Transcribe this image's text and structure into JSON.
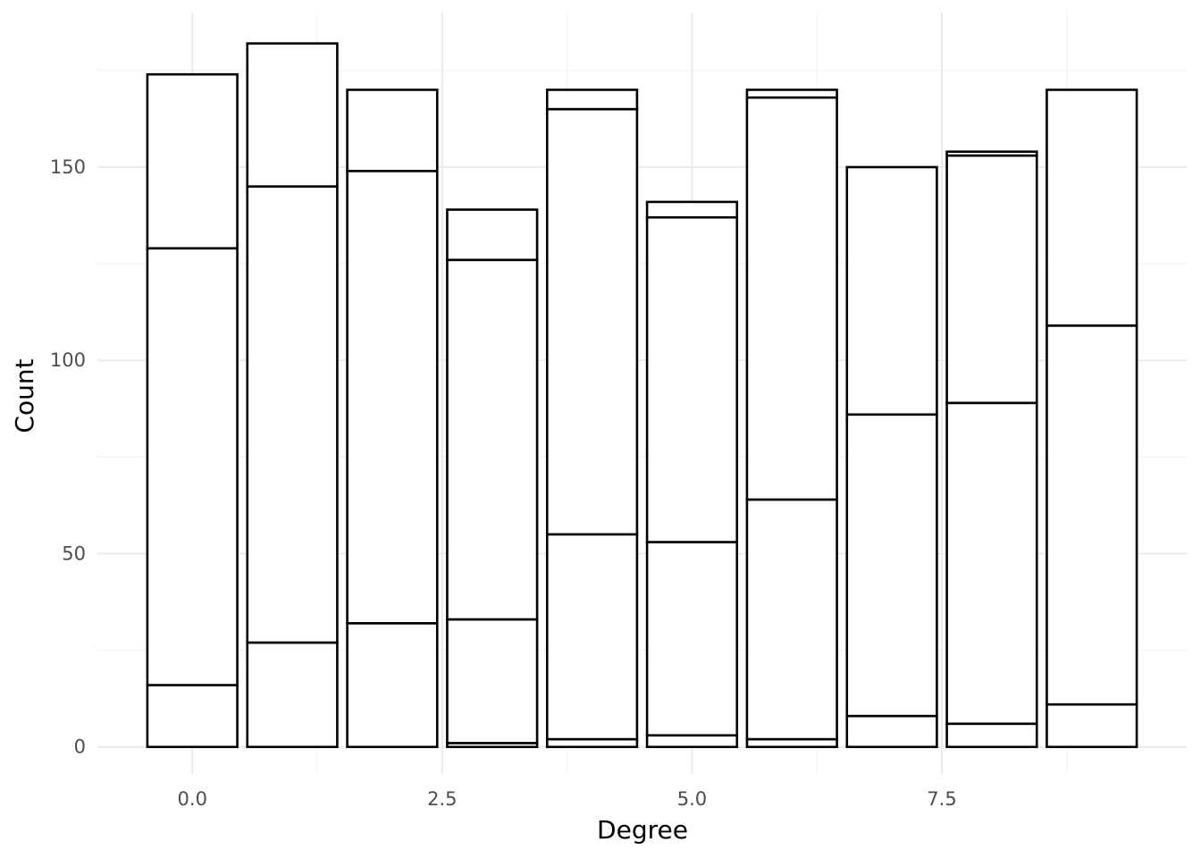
{
  "chart_data": {
    "type": "bar",
    "stacked": true,
    "title": "",
    "xlabel": "Degree",
    "ylabel": "Count",
    "xlim": [
      -0.95,
      9.95
    ],
    "ylim": [
      -7,
      190
    ],
    "x_ticks": [
      0.0,
      2.5,
      5.0,
      7.5
    ],
    "x_tick_labels": [
      "0.0",
      "2.5",
      "5.0",
      "7.5"
    ],
    "y_ticks": [
      0,
      50,
      100,
      150
    ],
    "y_tick_labels": [
      "0",
      "50",
      "100",
      "150"
    ],
    "grid": true,
    "bar_width": 0.9,
    "x": [
      0,
      1,
      2,
      3,
      4,
      5,
      6,
      7,
      8,
      9
    ],
    "stacks": [
      [
        16,
        113,
        45
      ],
      [
        27,
        118,
        37
      ],
      [
        32,
        117,
        21
      ],
      [
        1,
        32,
        93,
        13
      ],
      [
        2,
        53,
        110,
        5
      ],
      [
        3,
        50,
        84,
        4
      ],
      [
        2,
        62,
        104,
        2
      ],
      [
        8,
        78,
        64
      ],
      [
        6,
        83,
        64,
        1
      ],
      [
        11,
        98,
        61
      ]
    ]
  }
}
